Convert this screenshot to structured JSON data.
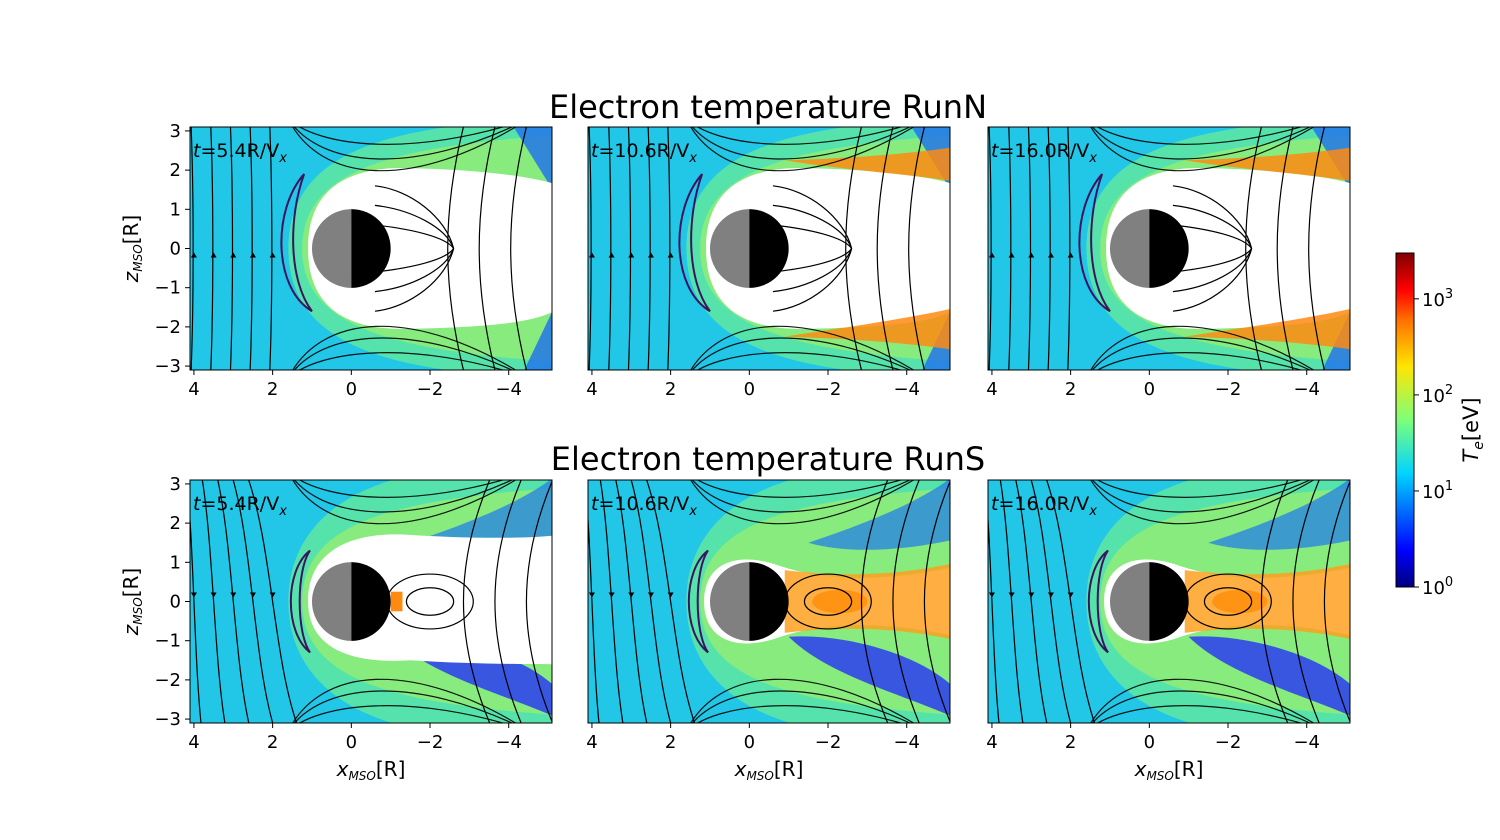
{
  "figure": {
    "row_titles": [
      "Electron temperature RunN",
      "Electron temperature RunS"
    ],
    "colorbar": {
      "label": "T_e[eV]",
      "label_main": "T",
      "label_sub": "e",
      "label_rest": "[eV]",
      "scale": "log",
      "range": [
        1,
        3000
      ],
      "ticks": [
        {
          "value": 1,
          "base": "10",
          "exp": "0"
        },
        {
          "value": 10,
          "base": "10",
          "exp": "1"
        },
        {
          "value": 100,
          "base": "10",
          "exp": "2"
        },
        {
          "value": 1000,
          "base": "10",
          "exp": "3"
        }
      ],
      "colormap": "jet"
    },
    "colors": {
      "planet_dayside": "#808080",
      "planet_nightside": "#000000",
      "magnetic_field_lines": "#000000",
      "contour": "#3b1460"
    }
  },
  "chart_data": [
    {
      "type": "heatmap",
      "run": "RunN",
      "time": "t=5.4R/V_x",
      "time_parts": {
        "main": "t",
        "rest": "=5.4R/V",
        "sub": "x"
      },
      "xlabel": "",
      "ylabel": "z_MSO[R]",
      "xlim": [
        4.1,
        -5.1
      ],
      "ylim": [
        -3.1,
        3.1
      ],
      "xticks": [
        "4",
        "2",
        "0",
        "−2",
        "−4"
      ],
      "yticks": [
        "3",
        "2",
        "1",
        "0",
        "−1",
        "−2",
        "−3"
      ],
      "overlays": [
        "streamlines",
        "bow-shock-contour",
        "planet"
      ]
    },
    {
      "type": "heatmap",
      "run": "RunN",
      "time": "t=10.6R/V_x",
      "time_parts": {
        "main": "t",
        "rest": "=10.6R/V",
        "sub": "x"
      },
      "xlabel": "",
      "ylabel": "",
      "xlim": [
        4.1,
        -5.1
      ],
      "ylim": [
        -3.1,
        3.1
      ],
      "xticks": [
        "4",
        "2",
        "0",
        "−2",
        "−4"
      ],
      "yticks": [],
      "overlays": [
        "streamlines",
        "bow-shock-contour",
        "planet"
      ]
    },
    {
      "type": "heatmap",
      "run": "RunN",
      "time": "t=16.0R/V_x",
      "time_parts": {
        "main": "t",
        "rest": "=16.0R/V",
        "sub": "x"
      },
      "xlabel": "",
      "ylabel": "",
      "xlim": [
        4.1,
        -5.1
      ],
      "ylim": [
        -3.1,
        3.1
      ],
      "xticks": [
        "4",
        "2",
        "0",
        "−2",
        "−4"
      ],
      "yticks": [],
      "overlays": [
        "streamlines",
        "bow-shock-contour",
        "planet"
      ]
    },
    {
      "type": "heatmap",
      "run": "RunS",
      "time": "t=5.4R/V_x",
      "time_parts": {
        "main": "t",
        "rest": "=5.4R/V",
        "sub": "x"
      },
      "xlabel": "x_MSO[R]",
      "ylabel": "z_MSO[R]",
      "xlim": [
        4.1,
        -5.1
      ],
      "ylim": [
        -3.1,
        3.1
      ],
      "xticks": [
        "4",
        "2",
        "0",
        "−2",
        "−4"
      ],
      "yticks": [
        "3",
        "2",
        "1",
        "0",
        "−1",
        "−2",
        "−3"
      ],
      "overlays": [
        "streamlines",
        "bow-shock-contour",
        "planet"
      ]
    },
    {
      "type": "heatmap",
      "run": "RunS",
      "time": "t=10.6R/V_x",
      "time_parts": {
        "main": "t",
        "rest": "=10.6R/V",
        "sub": "x"
      },
      "xlabel": "x_MSO[R]",
      "ylabel": "",
      "xlim": [
        4.1,
        -5.1
      ],
      "ylim": [
        -3.1,
        3.1
      ],
      "xticks": [
        "4",
        "2",
        "0",
        "−2",
        "−4"
      ],
      "yticks": [],
      "overlays": [
        "streamlines",
        "bow-shock-contour",
        "planet"
      ]
    },
    {
      "type": "heatmap",
      "run": "RunS",
      "time": "t=16.0R/V_x",
      "time_parts": {
        "main": "t",
        "rest": "=16.0R/V",
        "sub": "x"
      },
      "xlabel": "x_MSO[R]",
      "ylabel": "",
      "xlim": [
        4.1,
        -5.1
      ],
      "ylim": [
        -3.1,
        3.1
      ],
      "xticks": [
        "4",
        "2",
        "0",
        "−2",
        "−4"
      ],
      "yticks": [],
      "overlays": [
        "streamlines",
        "bow-shock-contour",
        "planet"
      ]
    }
  ]
}
